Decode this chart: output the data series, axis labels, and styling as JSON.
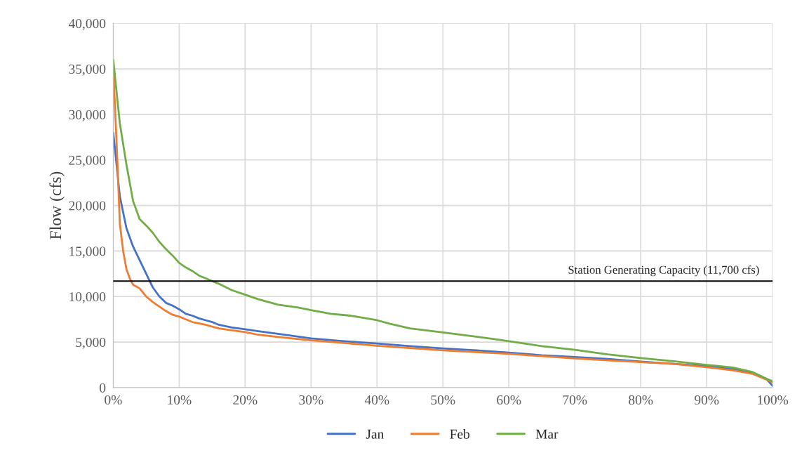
{
  "chart_data": {
    "type": "line",
    "ylabel": "Flow (cfs)",
    "xlim": [
      0,
      100
    ],
    "xticks": [
      {
        "value": 0,
        "label": "0%"
      },
      {
        "value": 10,
        "label": "10%"
      },
      {
        "value": 20,
        "label": "20%"
      },
      {
        "value": 30,
        "label": "30%"
      },
      {
        "value": 40,
        "label": "40%"
      },
      {
        "value": 50,
        "label": "50%"
      },
      {
        "value": 60,
        "label": "60%"
      },
      {
        "value": 70,
        "label": "70%"
      },
      {
        "value": 80,
        "label": "80%"
      },
      {
        "value": 90,
        "label": "90%"
      },
      {
        "value": 100,
        "label": "100%"
      }
    ],
    "ylim": [
      0,
      40000
    ],
    "yticks": [
      {
        "value": 0,
        "label": "0"
      },
      {
        "value": 5000,
        "label": "5,000"
      },
      {
        "value": 10000,
        "label": "10,000"
      },
      {
        "value": 15000,
        "label": "15,000"
      },
      {
        "value": 20000,
        "label": "20,000"
      },
      {
        "value": 25000,
        "label": "25,000"
      },
      {
        "value": 30000,
        "label": "30,000"
      },
      {
        "value": 35000,
        "label": "35,000"
      },
      {
        "value": 40000,
        "label": "40,000"
      }
    ],
    "grid": true,
    "legend": "bottom",
    "marker": "none",
    "line_style": "solid",
    "ref_lines": [
      {
        "axis": "y",
        "value": 11700,
        "label": "Station Generating Capacity (11,700 cfs)",
        "color": "#000000"
      }
    ],
    "series": [
      {
        "name": "Jan",
        "color": "#4472c4",
        "x": [
          0,
          1,
          2,
          3,
          4,
          5,
          6,
          7,
          8,
          9,
          10,
          11,
          12,
          13,
          14,
          15,
          16,
          18,
          20,
          22,
          25,
          30,
          35,
          40,
          45,
          50,
          55,
          60,
          65,
          70,
          75,
          80,
          85,
          90,
          94,
          97,
          99,
          100
        ],
        "values": [
          28000,
          21000,
          17500,
          15500,
          14000,
          12500,
          11000,
          10000,
          9300,
          9000,
          8600,
          8100,
          7900,
          7600,
          7400,
          7200,
          6900,
          6600,
          6400,
          6200,
          5900,
          5400,
          5100,
          4850,
          4550,
          4300,
          4100,
          3850,
          3550,
          3350,
          3150,
          2850,
          2600,
          2350,
          2050,
          1600,
          1000,
          200
        ]
      },
      {
        "name": "Feb",
        "color": "#ed7d31",
        "x": [
          0,
          0.5,
          1,
          1.5,
          2,
          2.5,
          3,
          4,
          5,
          6,
          7,
          8,
          9,
          10,
          11,
          12,
          14,
          16,
          18,
          20,
          22,
          25,
          30,
          35,
          40,
          45,
          50,
          55,
          60,
          65,
          70,
          75,
          80,
          85,
          90,
          94,
          97,
          99,
          100
        ],
        "values": [
          35000,
          27000,
          18000,
          15000,
          13000,
          12000,
          11300,
          10900,
          10000,
          9400,
          8900,
          8400,
          8000,
          7800,
          7500,
          7200,
          6900,
          6500,
          6300,
          6100,
          5800,
          5550,
          5200,
          4900,
          4600,
          4350,
          4100,
          3900,
          3700,
          3450,
          3200,
          3000,
          2800,
          2600,
          2250,
          1900,
          1500,
          900,
          600
        ]
      },
      {
        "name": "Mar",
        "color": "#70ad47",
        "x": [
          0,
          1,
          2,
          3,
          4,
          5,
          6,
          7,
          8,
          9,
          10,
          11,
          12,
          13,
          14,
          15,
          16,
          18,
          20,
          22,
          25,
          28,
          30,
          33,
          36,
          40,
          42,
          45,
          50,
          55,
          58,
          60,
          65,
          70,
          75,
          80,
          85,
          90,
          94,
          97,
          99,
          100
        ],
        "values": [
          36000,
          29000,
          24500,
          20500,
          18500,
          17800,
          17000,
          16000,
          15200,
          14500,
          13700,
          13200,
          12800,
          12300,
          12000,
          11700,
          11400,
          10700,
          10200,
          9700,
          9100,
          8800,
          8500,
          8100,
          7900,
          7400,
          7000,
          6500,
          6050,
          5600,
          5300,
          5100,
          4550,
          4150,
          3650,
          3250,
          2900,
          2500,
          2200,
          1700,
          1000,
          700
        ]
      }
    ]
  }
}
